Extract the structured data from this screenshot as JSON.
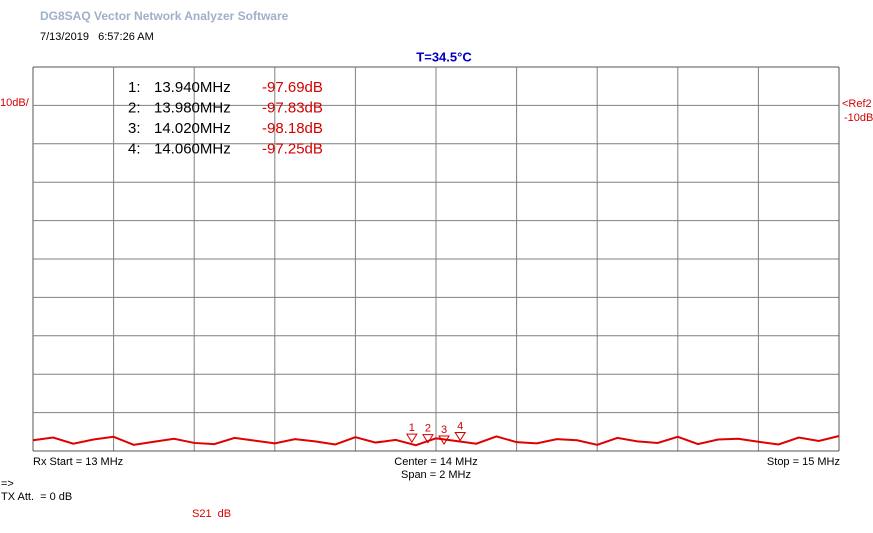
{
  "header": {
    "title": "DG8SAQ Vector Network Analyzer Software",
    "timestamp": "7/13/2019   6:57:26 AM",
    "temperature": "T=34.5°C"
  },
  "scale": {
    "per_division": "10dB/",
    "reference": "<Ref2",
    "reference_level": "-10dB"
  },
  "markers": [
    {
      "index_label": "1:",
      "plot_label": "1",
      "frequency": {
        "value": 13.94,
        "label": "13.940MHz"
      },
      "level": {
        "value": -97.69,
        "label": "-97.69dB"
      }
    },
    {
      "index_label": "2:",
      "plot_label": "2",
      "frequency": {
        "value": 13.98,
        "label": "13.980MHz"
      },
      "level": {
        "value": -97.83,
        "label": "-97.83dB"
      }
    },
    {
      "index_label": "3:",
      "plot_label": "3",
      "frequency": {
        "value": 14.02,
        "label": "14.020MHz"
      },
      "level": {
        "value": -98.18,
        "label": "-98.18dB"
      }
    },
    {
      "index_label": "4:",
      "plot_label": "4",
      "frequency": {
        "value": 14.06,
        "label": "14.060MHz"
      },
      "level": {
        "value": -97.25,
        "label": "-97.25dB"
      }
    }
  ],
  "trace": {
    "xlim": [
      13,
      15
    ],
    "ylim": [
      -100,
      0
    ],
    "x": [
      13,
      13.05,
      13.1,
      13.15,
      13.2,
      13.25,
      13.3,
      13.35,
      13.4,
      13.45,
      13.5,
      13.55,
      13.6,
      13.65,
      13.7,
      13.75,
      13.8,
      13.85,
      13.9,
      13.95,
      14,
      14.05,
      14.1,
      14.15,
      14.2,
      14.25,
      14.3,
      14.35,
      14.4,
      14.45,
      14.5,
      14.55,
      14.6,
      14.65,
      14.7,
      14.75,
      14.8,
      14.85,
      14.9,
      14.95,
      15
    ],
    "values": [
      -97.2,
      -96.5,
      -98.1,
      -97.0,
      -96.3,
      -98.4,
      -97.6,
      -96.8,
      -97.9,
      -98.2,
      -96.6,
      -97.3,
      -98.0,
      -96.9,
      -97.5,
      -98.3,
      -96.4,
      -97.8,
      -97.1,
      -98.5,
      -96.7,
      -97.4,
      -98.1,
      -96.2,
      -97.7,
      -98.0,
      -96.9,
      -97.2,
      -98.4,
      -96.6,
      -97.5,
      -97.9,
      -96.3,
      -98.2,
      -97.0,
      -96.8,
      -97.6,
      -98.3,
      -96.5,
      -97.4,
      -96.1
    ]
  },
  "footer": {
    "start": "Rx Start = 13 MHz",
    "center": "Center = 14 MHz",
    "span": "Span = 2 MHz",
    "stop": "Stop = 15 MHz",
    "arrow": "=>",
    "tx_att": "TX Att.  = 0 dB",
    "measurement": "S21  dB"
  }
}
